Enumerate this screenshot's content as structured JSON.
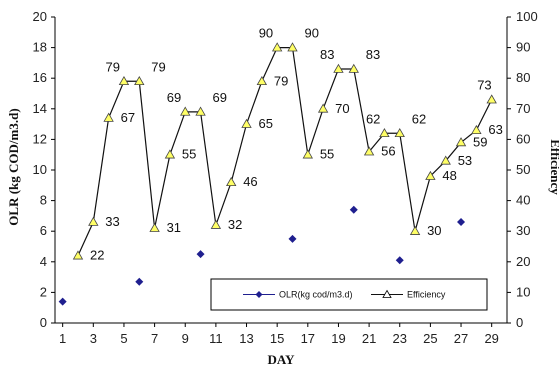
{
  "chart_data": {
    "type": "line",
    "xlabel": "DAY",
    "ylabel": "OLR (kg COD/m3.d)",
    "y2label": "Efficiency",
    "x_ticks": [
      1,
      3,
      5,
      7,
      9,
      11,
      13,
      15,
      17,
      19,
      21,
      23,
      25,
      27,
      29
    ],
    "ylim": [
      0,
      20
    ],
    "y_ticks": [
      0,
      2,
      4,
      6,
      8,
      10,
      12,
      14,
      16,
      18,
      20
    ],
    "y2lim": [
      0,
      100
    ],
    "y2_ticks": [
      0,
      10,
      20,
      30,
      40,
      50,
      60,
      70,
      80,
      90,
      100
    ],
    "grid": false,
    "legend": {
      "position": "bottom-right",
      "entries": [
        "OLR(kg cod/m3.d)",
        "Efficiency"
      ]
    },
    "series": [
      {
        "name": "OLR(kg cod/m3.d)",
        "axis": "left",
        "style": "markers",
        "color": "#1f1f8f",
        "points": [
          {
            "x": 1,
            "y": 1.4
          },
          {
            "x": 6,
            "y": 2.7
          },
          {
            "x": 10,
            "y": 4.5
          },
          {
            "x": 16,
            "y": 5.5
          },
          {
            "x": 20,
            "y": 7.4
          },
          {
            "x": 23,
            "y": 4.1
          },
          {
            "x": 27,
            "y": 6.6
          }
        ]
      },
      {
        "name": "Efficiency",
        "axis": "right",
        "style": "line-triangle",
        "color": "#111111",
        "marker_fill": "#ffff66",
        "points": [
          {
            "x": 2,
            "y": 22,
            "label": "22"
          },
          {
            "x": 3,
            "y": 33,
            "label": "33"
          },
          {
            "x": 4,
            "y": 67,
            "label": "67"
          },
          {
            "x": 5,
            "y": 79,
            "label": "79"
          },
          {
            "x": 6,
            "y": 79,
            "label": "79"
          },
          {
            "x": 7,
            "y": 31,
            "label": "31"
          },
          {
            "x": 8,
            "y": 55,
            "label": "55"
          },
          {
            "x": 9,
            "y": 69,
            "label": "69"
          },
          {
            "x": 10,
            "y": 69,
            "label": "69"
          },
          {
            "x": 11,
            "y": 32,
            "label": "32"
          },
          {
            "x": 12,
            "y": 46,
            "label": "46"
          },
          {
            "x": 13,
            "y": 65,
            "label": "65"
          },
          {
            "x": 14,
            "y": 79,
            "label": "79"
          },
          {
            "x": 15,
            "y": 90,
            "label": "90"
          },
          {
            "x": 16,
            "y": 90,
            "label": "90"
          },
          {
            "x": 17,
            "y": 55,
            "label": "55"
          },
          {
            "x": 18,
            "y": 70,
            "label": "70"
          },
          {
            "x": 19,
            "y": 83,
            "label": "83"
          },
          {
            "x": 20,
            "y": 83,
            "label": "83"
          },
          {
            "x": 21,
            "y": 56,
            "label": "56"
          },
          {
            "x": 22,
            "y": 62,
            "label": "62"
          },
          {
            "x": 23,
            "y": 62,
            "label": "62"
          },
          {
            "x": 24,
            "y": 30,
            "label": "30"
          },
          {
            "x": 25,
            "y": 48,
            "label": "48"
          },
          {
            "x": 26,
            "y": 53,
            "label": "53"
          },
          {
            "x": 27,
            "y": 59,
            "label": "59"
          },
          {
            "x": 28,
            "y": 63,
            "label": "63"
          },
          {
            "x": 29,
            "y": 73,
            "label": "73"
          }
        ]
      }
    ]
  }
}
